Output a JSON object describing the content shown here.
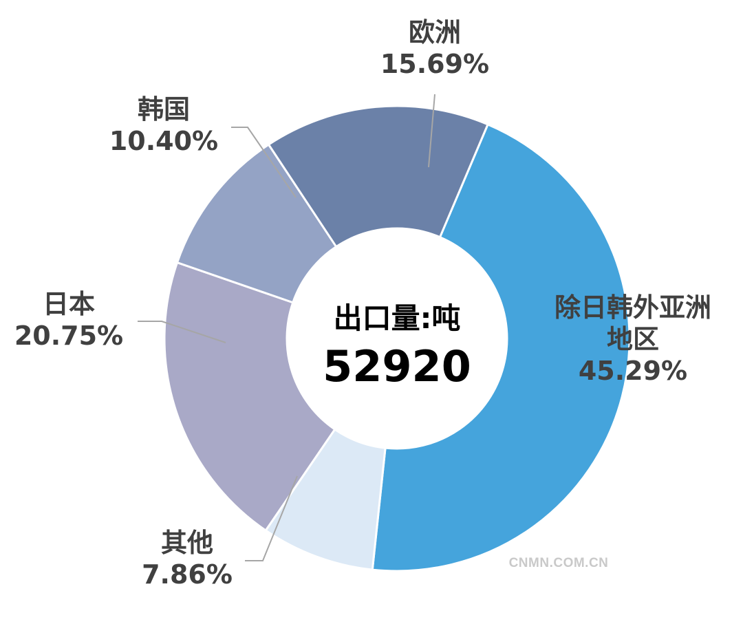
{
  "chart_data": {
    "type": "pie",
    "variant": "donut",
    "center_label": "出口量:吨",
    "center_value": "52920",
    "slices": [
      {
        "label_lines": [
          "除日韩外亚洲",
          "地区"
        ],
        "percent_text": "45.29%",
        "value": 45.29,
        "color": "#45a4dc"
      },
      {
        "label_lines": [
          "其他"
        ],
        "percent_text": "7.86%",
        "value": 7.86,
        "color": "#dce9f6"
      },
      {
        "label_lines": [
          "日本"
        ],
        "percent_text": "20.75%",
        "value": 20.75,
        "color": "#a9a9c7"
      },
      {
        "label_lines": [
          "韩国"
        ],
        "percent_text": "10.40%",
        "value": 10.4,
        "color": "#94a3c5"
      },
      {
        "label_lines": [
          "欧洲"
        ],
        "percent_text": "15.69%",
        "value": 15.69,
        "color": "#6b81a8"
      }
    ],
    "legend": "none"
  },
  "watermark": "CNMN.COM.CN"
}
